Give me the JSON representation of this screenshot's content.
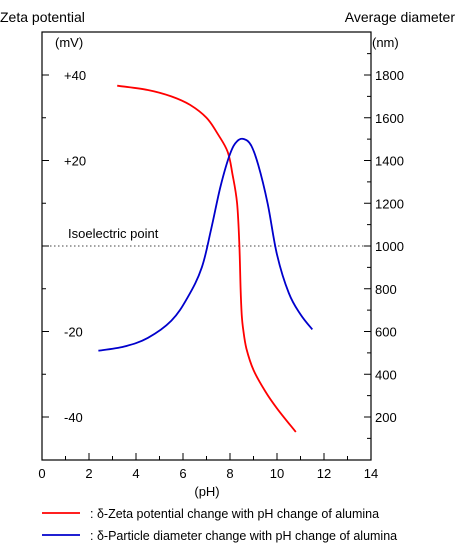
{
  "chart_data": {
    "type": "line",
    "title": "",
    "xlabel": "(pH)",
    "xlim": [
      0,
      14
    ],
    "x_ticks": [
      "0",
      "2",
      "4",
      "6",
      "8",
      "10",
      "12",
      "14"
    ],
    "left_axis": {
      "title": "Zeta potential",
      "unit": "(mV)",
      "ylim": [
        -50,
        50
      ],
      "tick_labels": [
        {
          "value": 40,
          "text": "+40"
        },
        {
          "value": 20,
          "text": "+20"
        },
        {
          "value": -20,
          "text": "-20"
        },
        {
          "value": -40,
          "text": "-40"
        }
      ]
    },
    "right_axis": {
      "title": "Average diameter",
      "unit": "(nm)",
      "ylim": [
        0,
        2000
      ],
      "tick_labels": [
        "200",
        "400",
        "600",
        "800",
        "1000",
        "1200",
        "1400",
        "1600",
        "1800"
      ]
    },
    "reference_line": {
      "label": "Isoelectric point",
      "zeta_value": 0,
      "diameter_value": 1000,
      "style": "dotted"
    },
    "grid": false,
    "legend_position": "bottom",
    "series": [
      {
        "name": ": δ-Zeta potential change with pH change of alumina",
        "axis": "left",
        "color": "#ff0000",
        "x": [
          3.2,
          4.5,
          5.5,
          6.3,
          7.0,
          7.5,
          7.9,
          8.1,
          8.3,
          8.4,
          8.45,
          8.5,
          8.55,
          8.7,
          9.0,
          9.5,
          10.0,
          10.8
        ],
        "y": [
          37.5,
          36.5,
          35,
          33,
          30,
          26,
          22,
          17,
          10,
          0,
          -10,
          -16,
          -19,
          -24,
          -29,
          -34,
          -38,
          -43.5
        ]
      },
      {
        "name": ": δ-Particle diameter change with pH change of alumina",
        "axis": "right",
        "color": "#0000cc",
        "x": [
          2.4,
          3.5,
          4.5,
          5.5,
          6.2,
          6.8,
          7.2,
          7.6,
          8.0,
          8.3,
          8.6,
          8.9,
          9.2,
          9.6,
          10.0,
          10.5,
          11.0,
          11.5
        ],
        "y": [
          510,
          530,
          570,
          650,
          760,
          900,
          1080,
          1280,
          1430,
          1490,
          1500,
          1470,
          1380,
          1200,
          960,
          780,
          680,
          610
        ]
      }
    ]
  }
}
